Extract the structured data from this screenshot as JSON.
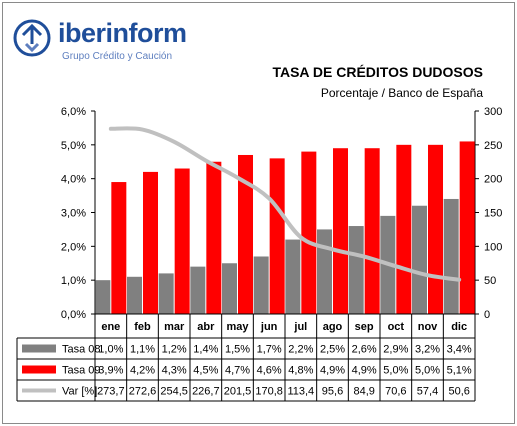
{
  "brand": {
    "name": "iberinform",
    "tagline": "Grupo Crédito y Caución"
  },
  "chart_data": {
    "type": "bar",
    "title": "TASA DE CRÉDITOS DUDOSOS",
    "subtitle": "Porcentaje / Banco de España",
    "categories": [
      "ene",
      "feb",
      "mar",
      "abr",
      "may",
      "jun",
      "jul",
      "ago",
      "sep",
      "oct",
      "nov",
      "dic"
    ],
    "series": [
      {
        "name": "Tasa 08",
        "type": "bar",
        "axis": "left",
        "color": "#808080",
        "values": [
          1.0,
          1.1,
          1.2,
          1.4,
          1.5,
          1.7,
          2.2,
          2.5,
          2.6,
          2.9,
          3.2,
          3.4
        ],
        "labels": [
          "1,0%",
          "1,1%",
          "1,2%",
          "1,4%",
          "1,5%",
          "1,7%",
          "2,2%",
          "2,5%",
          "2,6%",
          "2,9%",
          "3,2%",
          "3,4%"
        ]
      },
      {
        "name": "Tasa 09",
        "type": "bar",
        "axis": "left",
        "color": "#ff0000",
        "values": [
          3.9,
          4.2,
          4.3,
          4.5,
          4.7,
          4.6,
          4.8,
          4.9,
          4.9,
          5.0,
          5.0,
          5.1
        ],
        "labels": [
          "3,9%",
          "4,2%",
          "4,3%",
          "4,5%",
          "4,7%",
          "4,6%",
          "4,8%",
          "4,9%",
          "4,9%",
          "5,0%",
          "5,0%",
          "5,1%"
        ]
      },
      {
        "name": "Var [%]",
        "type": "line",
        "axis": "right",
        "color": "#c0c0c0",
        "values": [
          273.7,
          272.6,
          254.5,
          226.7,
          201.5,
          170.8,
          113.4,
          95.6,
          84.9,
          70.6,
          57.4,
          50.6
        ],
        "labels": [
          "273,7",
          "272,6",
          "254,5",
          "226,7",
          "201,5",
          "170,8",
          "113,4",
          "95,6",
          "84,9",
          "70,6",
          "57,4",
          "50,6"
        ]
      }
    ],
    "y_left": {
      "min": 0,
      "max": 6,
      "ticks": [
        0,
        1,
        2,
        3,
        4,
        5,
        6
      ],
      "tick_labels": [
        "0,0%",
        "1,0%",
        "2,0%",
        "3,0%",
        "4,0%",
        "5,0%",
        "6,0%"
      ]
    },
    "y_right": {
      "min": 0,
      "max": 300,
      "ticks": [
        0,
        50,
        100,
        150,
        200,
        250,
        300
      ],
      "tick_labels": [
        "0",
        "50",
        "100",
        "150",
        "200",
        "250",
        "300"
      ]
    },
    "grid": false,
    "legend": "data-table-below"
  }
}
